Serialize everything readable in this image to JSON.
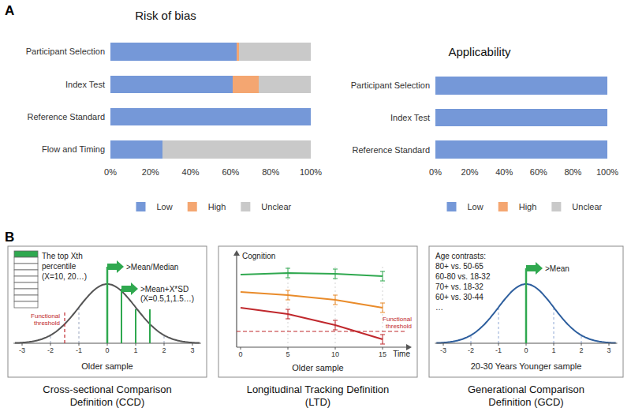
{
  "panel_labels": [
    "A",
    "B"
  ],
  "chart_data": [
    {
      "type": "bar",
      "title": "Risk of bias",
      "orientation": "horizontal",
      "stacked": true,
      "categories": [
        "Participant Selection",
        "Index Test",
        "Reference Standard",
        "Flow and Timing"
      ],
      "series": [
        {
          "name": "Low",
          "color": "#7598d8",
          "values": [
            63,
            61,
            100,
            26
          ]
        },
        {
          "name": "High",
          "color": "#f4a671",
          "values": [
            1,
            13,
            0,
            0
          ]
        },
        {
          "name": "Unclear",
          "color": "#c9c9c9",
          "values": [
            36,
            26,
            0,
            74
          ]
        }
      ],
      "xlim": [
        0,
        100
      ],
      "xticks": [
        {
          "value": 0,
          "label": "0%"
        },
        {
          "value": 20,
          "label": "20%"
        },
        {
          "value": 40,
          "label": "40%"
        },
        {
          "value": 60,
          "label": "60%"
        },
        {
          "value": 80,
          "label": "80%"
        },
        {
          "value": 100,
          "label": "100%"
        }
      ],
      "grid": false,
      "legend": "bottom"
    },
    {
      "type": "bar",
      "title": "Applicability",
      "orientation": "horizontal",
      "stacked": true,
      "categories": [
        "Participant Selection",
        "Index Test",
        "Reference Standard"
      ],
      "series": [
        {
          "name": "Low",
          "color": "#7598d8",
          "values": [
            100,
            100,
            100
          ]
        },
        {
          "name": "High",
          "color": "#f4a671",
          "values": [
            0,
            0,
            0
          ]
        },
        {
          "name": "Unclear",
          "color": "#c9c9c9",
          "values": [
            0,
            0,
            0
          ]
        }
      ],
      "xlim": [
        0,
        100
      ],
      "xticks": [
        {
          "value": 0,
          "label": "0%"
        },
        {
          "value": 20,
          "label": "20%"
        },
        {
          "value": 40,
          "label": "40%"
        },
        {
          "value": 60,
          "label": "60%"
        },
        {
          "value": 80,
          "label": "80%"
        },
        {
          "value": 100,
          "label": "100%"
        }
      ],
      "grid": false,
      "legend": "bottom"
    }
  ],
  "panel_b": {
    "ccd": {
      "percentile_text": [
        "The top Xth",
        "percentile",
        "(X=10, 20…)"
      ],
      "mean_flag": ">Mean/Median",
      "sd_flag": [
        ">Mean+X*SD",
        "(X=0.5,1,1.5…)"
      ],
      "threshold": "Functional threshold",
      "axis_ticks": [
        -3,
        -2,
        -1,
        0,
        1,
        2,
        3
      ],
      "sample": "Older sample",
      "caption": "Cross-sectional Comparison Definition (CCD)"
    },
    "ltd": {
      "y_label": "Cognition",
      "x_label": "Time",
      "time_ticks": [
        0,
        5,
        10,
        15
      ],
      "threshold": "Functional threshold",
      "sample": "Older sample",
      "caption": "Longitudinal Tracking Definition (LTD)"
    },
    "gcd": {
      "contrasts_title": "Age contrasts:",
      "contrasts": [
        "80+ vs. 50-65",
        "60-80 vs. 18-32",
        "70+ vs. 18-32",
        "60+ vs. 30-44",
        "…"
      ],
      "mean_flag": ">Mean",
      "axis_ticks": [
        -3,
        -2,
        -1,
        0,
        1,
        2,
        3
      ],
      "sample": "20-30 Years Younger sample",
      "caption": "Generational Comparison Definition (GCD)"
    }
  }
}
